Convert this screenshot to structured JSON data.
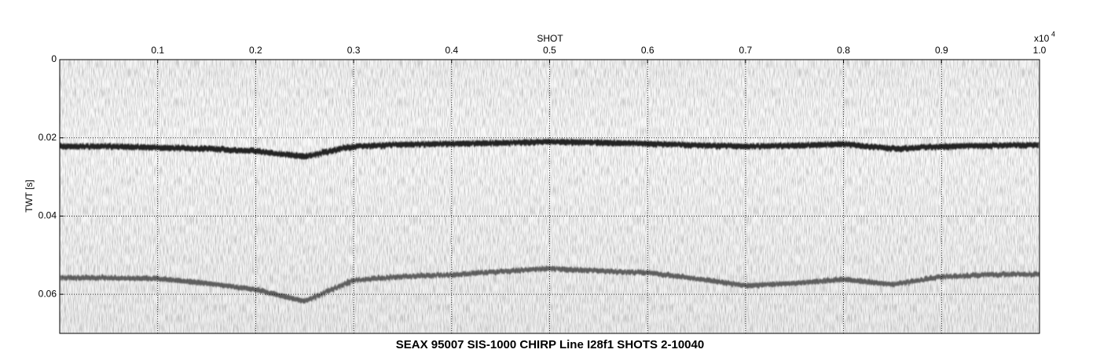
{
  "chart_data": {
    "type": "seismic",
    "title": "SEAX 95007 SIS-1000 CHIRP Line I28f1 SHOTS 2-10040",
    "x_label": "SHOT",
    "y_label": "TWT [s]",
    "x_multiplier": "x10",
    "x_exponent": "4",
    "xlim": [
      0,
      1.0
    ],
    "ylim": [
      0,
      0.07
    ],
    "y_inverted": true,
    "xticks": [
      0.1,
      0.2,
      0.3,
      0.4,
      0.5,
      0.6,
      0.7,
      0.8,
      0.9,
      {
        "value": 1,
        "label": "1.0"
      }
    ],
    "yticks": [
      0,
      0.02,
      0.04,
      0.06
    ],
    "grid": true,
    "x": [
      0,
      0.05,
      0.1,
      0.15,
      0.2,
      0.25,
      0.3,
      0.35,
      0.4,
      0.45,
      0.5,
      0.55,
      0.6,
      0.65,
      0.7,
      0.75,
      0.8,
      0.85,
      0.9,
      0.95,
      1.0
    ],
    "series": [
      {
        "color": "#111111",
        "values": [
          0.0222,
          0.0222,
          0.0225,
          0.0228,
          0.0234,
          0.0248,
          0.0222,
          0.0217,
          0.0215,
          0.0213,
          0.021,
          0.0212,
          0.0215,
          0.0219,
          0.0222,
          0.022,
          0.0216,
          0.0228,
          0.0222,
          0.022,
          0.0218
        ]
      },
      {
        "color": "#333333",
        "values": [
          0.0558,
          0.0558,
          0.056,
          0.0572,
          0.0588,
          0.0618,
          0.0564,
          0.0555,
          0.055,
          0.0542,
          0.0534,
          0.054,
          0.0545,
          0.056,
          0.0578,
          0.0572,
          0.0562,
          0.0575,
          0.0555,
          0.055,
          0.0548
        ]
      }
    ]
  }
}
